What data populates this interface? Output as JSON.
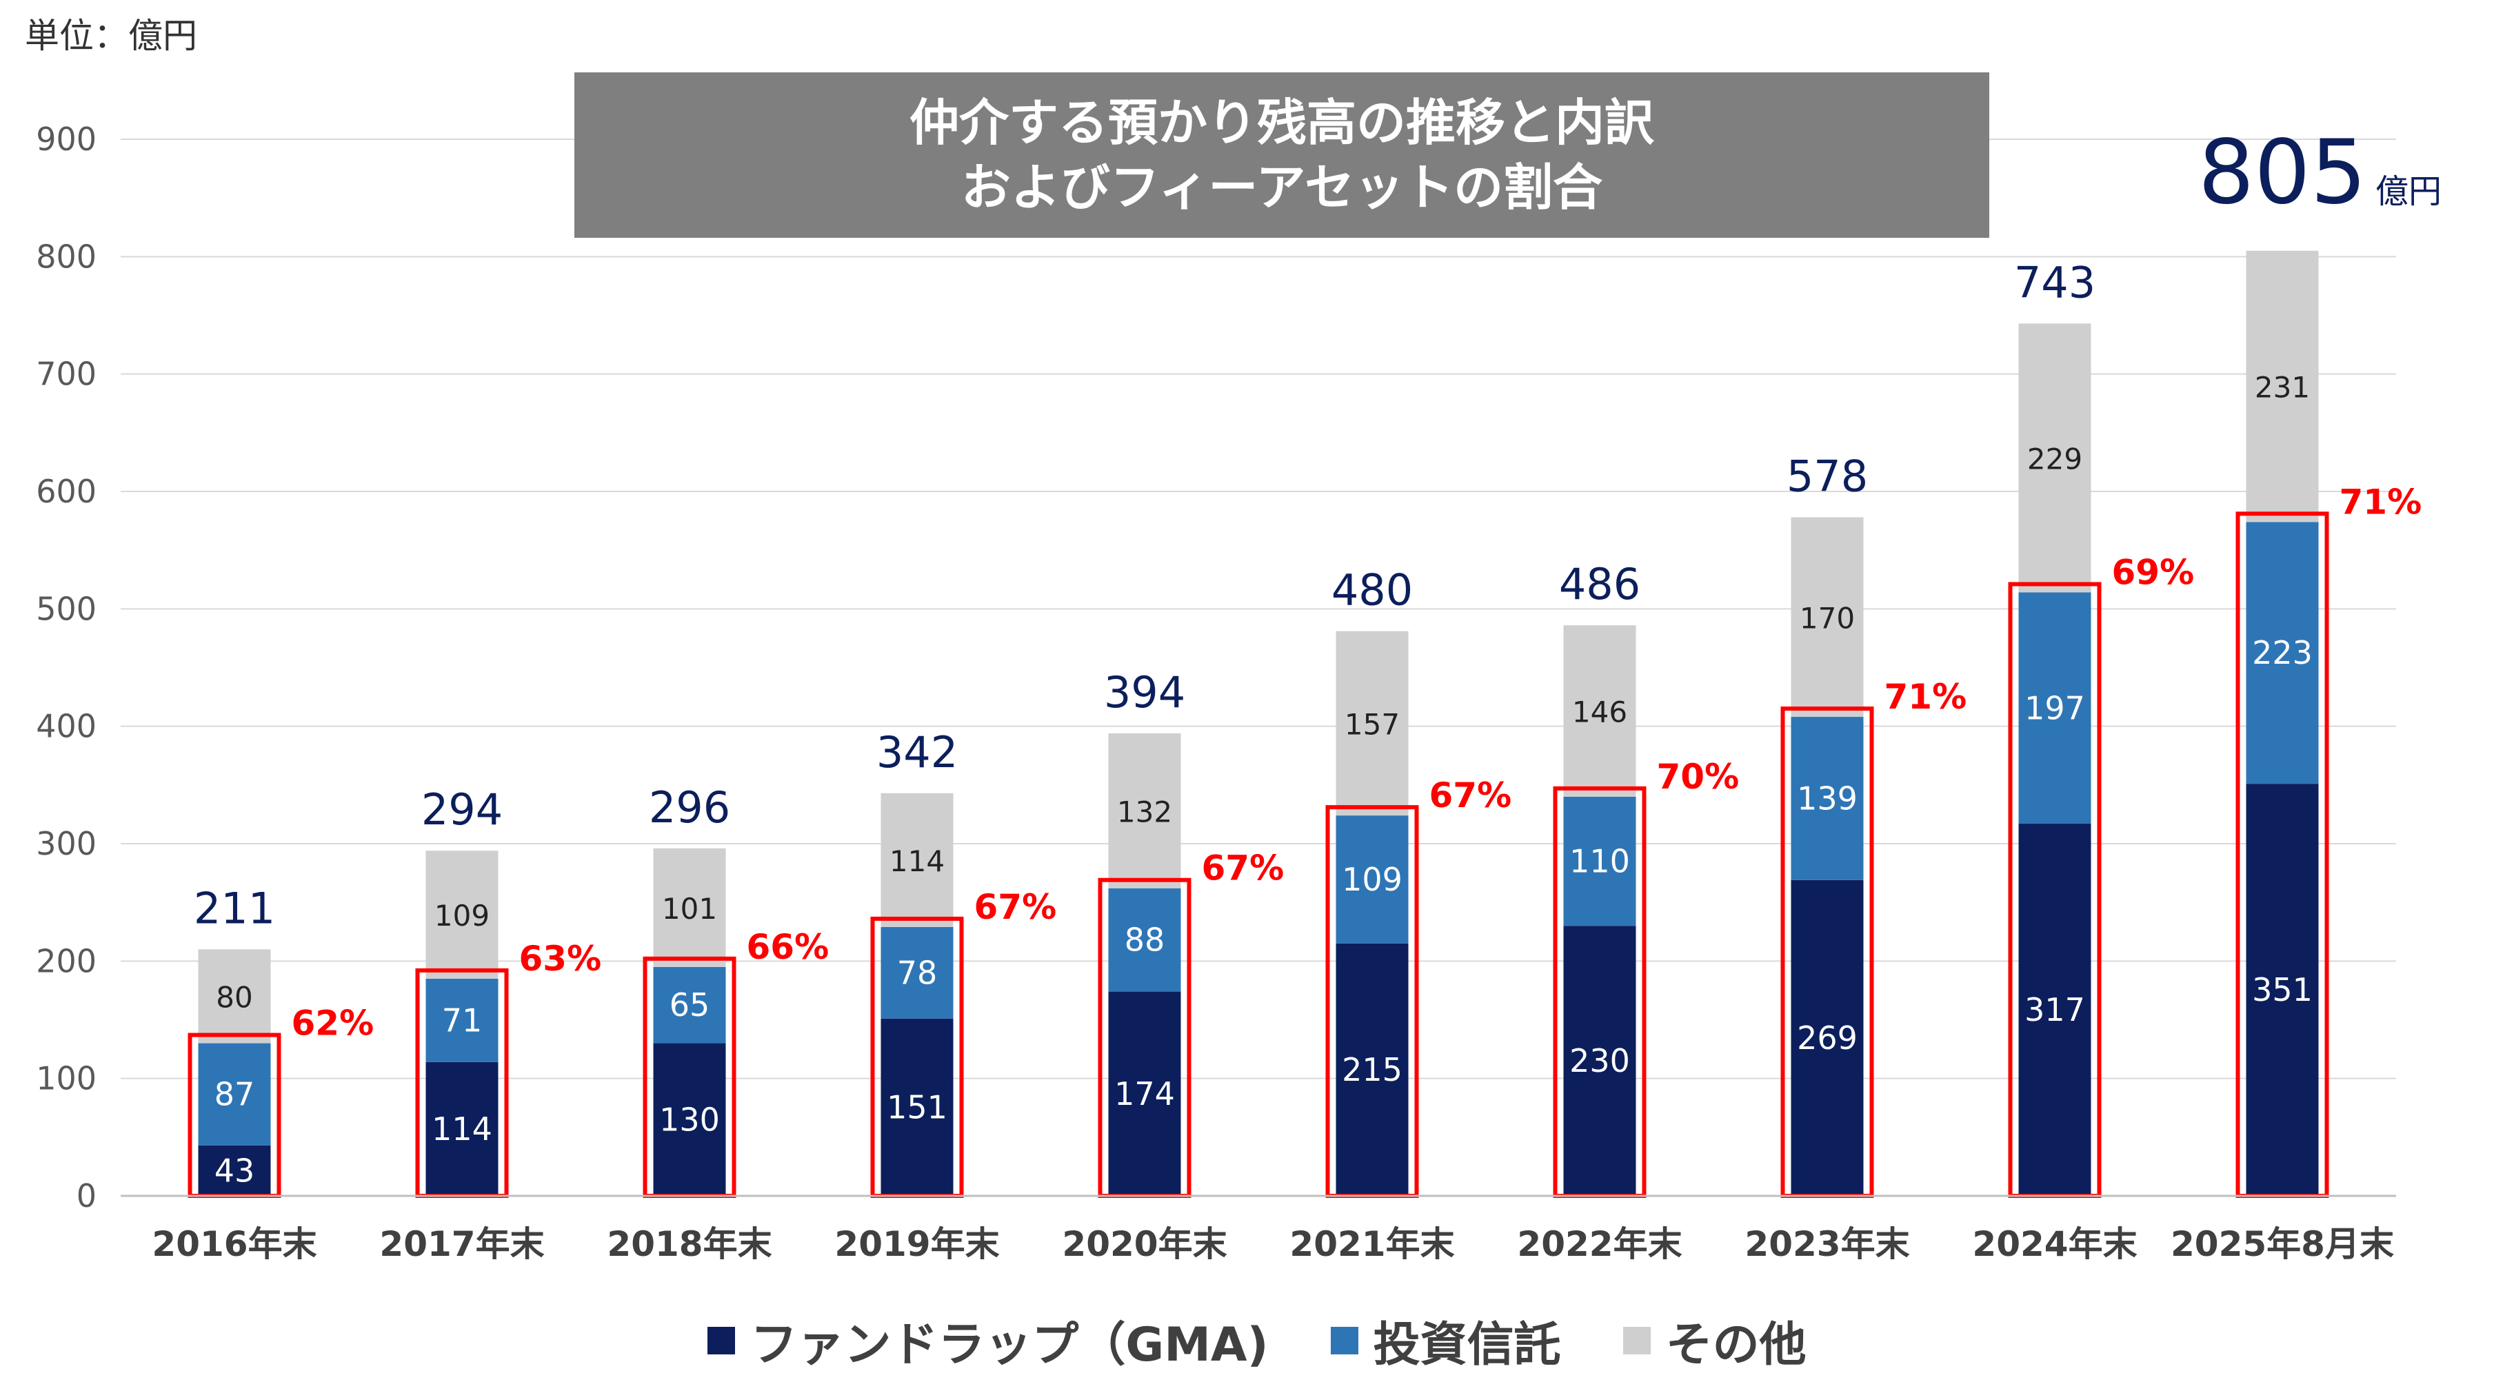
{
  "unit_label": "単位：億円",
  "title_line1": "仲介する預かり残高の推移と内訳",
  "title_line2": "およびフィーアセットの割合",
  "last_total_unit": "億円",
  "colors": {
    "gma": "#0c1f5c",
    "trust": "#2e75b6",
    "other": "#d0cfd0",
    "highlight": "#ff0000",
    "total_text": "#0c1f5c",
    "grid": "#d9d9d9",
    "axis_text": "#595959"
  },
  "chart_data": {
    "type": "bar",
    "stacked": true,
    "categories": [
      "2016年末",
      "2017年末",
      "2018年末",
      "2019年末",
      "2020年末",
      "2021年末",
      "2022年末",
      "2023年末",
      "2024年末",
      "2025年8月末"
    ],
    "series": [
      {
        "name": "ファンドラップ（GMA)",
        "values": [
          43,
          114,
          130,
          151,
          174,
          215,
          230,
          269,
          317,
          351
        ]
      },
      {
        "name": "投資信託",
        "values": [
          87,
          71,
          65,
          78,
          88,
          109,
          110,
          139,
          197,
          223
        ]
      },
      {
        "name": "その他",
        "values": [
          80,
          109,
          101,
          114,
          132,
          157,
          146,
          170,
          229,
          231
        ]
      }
    ],
    "totals": [
      "211",
      "294",
      "296",
      "342",
      "394",
      "480",
      "486",
      "578",
      "743",
      "805"
    ],
    "fee_asset_ratio": [
      "62%",
      "63%",
      "66%",
      "67%",
      "67%",
      "67%",
      "70%",
      "71%",
      "69%",
      "71%"
    ],
    "y_ticks": [
      "0",
      "100",
      "200",
      "300",
      "400",
      "500",
      "600",
      "700",
      "800",
      "900"
    ],
    "ylim": [
      0,
      900
    ],
    "grid": true,
    "legend_position": "bottom"
  }
}
